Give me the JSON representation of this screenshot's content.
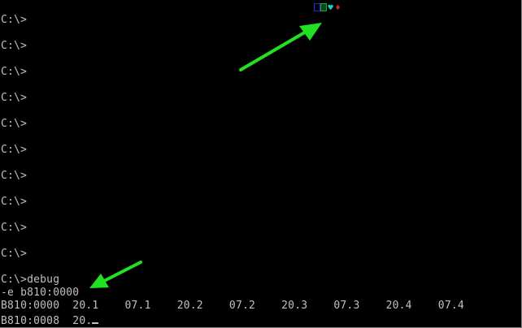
{
  "terminal": {
    "prompt_lines": [
      "C:\\>",
      "C:\\>",
      "C:\\>",
      "C:\\>",
      "C:\\>",
      "C:\\>",
      "C:\\>",
      "C:\\>",
      "C:\\>",
      "C:\\>"
    ],
    "command_line": "C:\\>debug",
    "debug_command": "-e b810:0000",
    "dump_line_1": "B810:0000  20.1    07.1    20.2    07.2    20.3    07.3    20.4    07.4",
    "dump_line_2": "B810:0008  20."
  },
  "screen_marks": {
    "icons": [
      "blue-box",
      "green-box",
      "cyan-heart",
      "red-diamond"
    ],
    "heart_glyph": "♥",
    "diamond_glyph": "♦"
  },
  "annotations": {
    "arrow_color": "#22e022"
  },
  "colors": {
    "background": "#000000",
    "text": "#c0c0c0"
  }
}
